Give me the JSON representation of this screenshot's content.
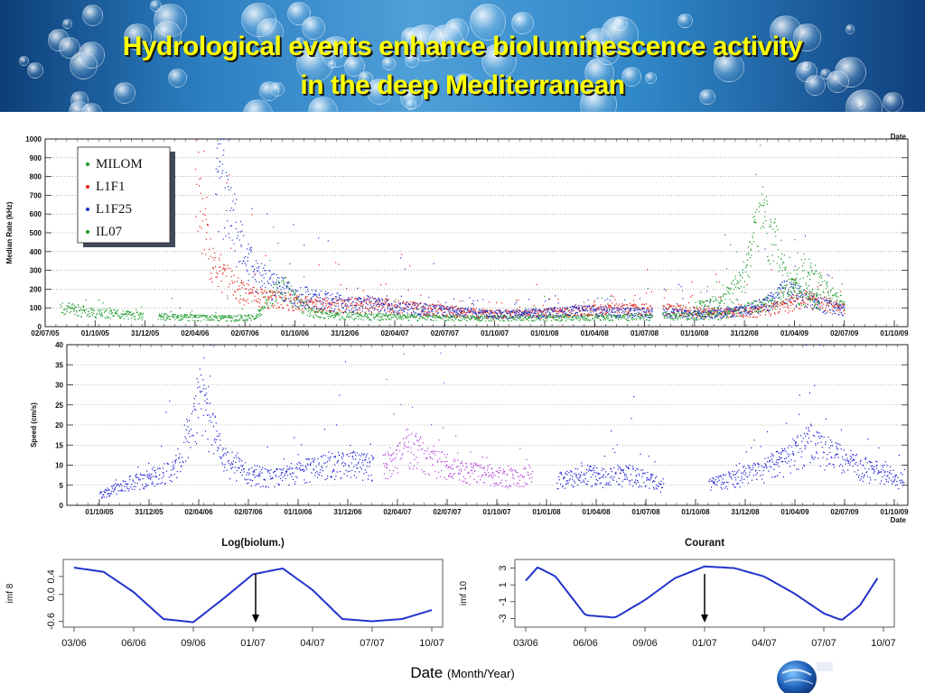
{
  "title_lines": [
    "Hydrological events enhance bioluminescence activity",
    "in the deep Mediterranean"
  ],
  "x_caption": {
    "main": "Date",
    "unit": "(Month/Year)"
  },
  "chart_data": [
    {
      "type": "scatter",
      "ylabel": "Median Rate (kHz)",
      "ylim": [
        0,
        1000
      ],
      "yticks": [
        0,
        100,
        200,
        300,
        400,
        500,
        600,
        700,
        800,
        900,
        1000
      ],
      "xticks": [
        "02/07/05",
        "01/10/05",
        "31/12/05",
        "02/04/06",
        "02/07/06",
        "01/10/06",
        "31/12/06",
        "02/04/07",
        "02/07/07",
        "01/10/07",
        "01/01/08",
        "01/04/08",
        "01/07/08",
        "01/10/08",
        "31/12/08",
        "01/04/09",
        "02/07/09",
        "01/10/09"
      ],
      "x_axis_label": "Date",
      "grid": true,
      "legend_position": "top-left",
      "series": [
        {
          "name": "MILOM",
          "color": "#1a9a2a",
          "x": [
            0.3,
            1.0,
            1.6,
            2.6,
            3.6,
            4.2,
            4.7,
            5.3,
            5.9,
            7.0,
            9.0,
            11.0,
            13.5,
            14.0,
            14.4,
            14.8,
            15.2,
            15.6,
            16.0
          ],
          "y": [
            120,
            90,
            75,
            60,
            55,
            60,
            260,
            90,
            70,
            60,
            55,
            60,
            70,
            110,
            140,
            200,
            350,
            220,
            130
          ]
        },
        {
          "name": "L1F1",
          "color": "#e2231a",
          "x": [
            3.0,
            3.1,
            3.3,
            3.6,
            3.9,
            4.3,
            4.8,
            5.4,
            6.0,
            6.6,
            7.2,
            7.8,
            8.4,
            9.0,
            9.6,
            10.2,
            10.8,
            11.3,
            12.4,
            12.8,
            13.2,
            13.6,
            14.0,
            14.4,
            14.8,
            15.2,
            15.6,
            16.0
          ],
          "y": [
            980,
            700,
            420,
            300,
            220,
            180,
            160,
            140,
            130,
            140,
            120,
            110,
            90,
            80,
            80,
            90,
            100,
            110,
            110,
            100,
            90,
            90,
            90,
            100,
            130,
            170,
            140,
            110
          ]
        },
        {
          "name": "L1F25",
          "color": "#2233cc",
          "x": [
            3.4,
            3.6,
            3.8,
            4.0,
            4.2,
            4.5,
            5.0,
            5.5,
            6.0,
            6.5,
            7.0,
            7.5,
            8.0,
            8.5,
            9.0,
            9.5,
            10.0,
            10.5,
            11.0,
            11.3,
            12.4,
            12.8,
            13.2,
            13.6,
            14.0,
            14.4,
            14.8,
            15.2,
            15.6,
            16.0
          ],
          "y": [
            960,
            800,
            600,
            420,
            330,
            260,
            200,
            170,
            140,
            150,
            120,
            110,
            100,
            90,
            80,
            80,
            90,
            100,
            100,
            90,
            90,
            80,
            80,
            90,
            100,
            140,
            220,
            180,
            130,
            100
          ]
        },
        {
          "name": "IL07",
          "color": "#1a9a2a",
          "x": [
            13.0,
            13.5,
            14.0,
            14.3,
            14.6,
            14.9,
            15.2,
            15.5
          ],
          "y": [
            120,
            150,
            300,
            700,
            500,
            260,
            180,
            150
          ]
        }
      ]
    },
    {
      "type": "scatter",
      "ylabel": "Speed (cm/s)",
      "ylim": [
        0,
        40
      ],
      "yticks": [
        0,
        5,
        10,
        15,
        20,
        25,
        30,
        35,
        40
      ],
      "xticks": [
        "01/10/05",
        "31/12/05",
        "02/04/06",
        "02/07/06",
        "01/10/06",
        "31/12/06",
        "02/04/07",
        "02/07/07",
        "01/10/07",
        "01/01/08",
        "01/04/08",
        "01/07/08",
        "01/10/08",
        "31/12/08",
        "01/04/09",
        "02/07/09",
        "01/10/09"
      ],
      "x_axis_label": "Date",
      "grid": true,
      "series": [
        {
          "color": "#1a1ad6",
          "x": [
            0.0,
            0.5,
            1.0,
            1.5,
            2.0,
            2.5,
            3.0,
            3.5,
            4.0,
            4.5,
            5.0,
            5.5
          ],
          "y": [
            3,
            6,
            8,
            10,
            30,
            13,
            9,
            8,
            10,
            11,
            12,
            11
          ]
        },
        {
          "color": "#b23bd8",
          "x": [
            5.7,
            6.2,
            6.7,
            7.2,
            7.7,
            8.2,
            8.7
          ],
          "y": [
            11,
            17,
            13,
            10,
            9,
            8,
            9
          ]
        },
        {
          "color": "#1a1ad6",
          "x": [
            9.2,
            9.7,
            10.2,
            10.7,
            11.3,
            12.3,
            12.8,
            13.3,
            13.8,
            14.3,
            14.8,
            15.3,
            15.8,
            16.2
          ],
          "y": [
            7,
            9,
            8,
            9,
            6,
            6,
            8,
            10,
            13,
            18,
            14,
            11,
            9,
            7
          ]
        }
      ]
    },
    {
      "type": "line",
      "title": "Log(biolum.)",
      "ylabel": "imf 8",
      "yticks": [
        "0.4",
        "0.0",
        "-0.6"
      ],
      "ylim": [
        -0.65,
        0.7
      ],
      "xticks": [
        "03/06",
        "06/06",
        "09/06",
        "01/07",
        "04/07",
        "07/07",
        "10/07"
      ],
      "marker_at": "01/07",
      "series": [
        {
          "color": "#2233cc",
          "x": [
            0.0,
            0.5,
            1.0,
            1.5,
            2.0,
            2.5,
            3.0,
            3.5,
            4.0,
            4.5,
            5.0,
            5.5,
            6.0
          ],
          "y": [
            0.6,
            0.5,
            0.05,
            -0.55,
            -0.62,
            -0.1,
            0.45,
            0.58,
            0.1,
            -0.55,
            -0.6,
            -0.55,
            -0.35
          ]
        }
      ]
    },
    {
      "type": "line",
      "title": "Courant",
      "ylabel": "imf 10",
      "yticks": [
        "3",
        "1",
        "-1",
        "-3"
      ],
      "ylim": [
        -3.6,
        3.6
      ],
      "xticks": [
        "03/06",
        "06/06",
        "09/06",
        "01/07",
        "04/07",
        "07/07",
        "10/07"
      ],
      "marker_at": "01/07",
      "series": [
        {
          "color": "#2233cc",
          "x": [
            0.0,
            0.2,
            0.5,
            1.0,
            1.5,
            2.0,
            2.5,
            3.0,
            3.5,
            4.0,
            4.5,
            5.0,
            5.3,
            5.6,
            5.9
          ],
          "y": [
            1.5,
            3.1,
            2.0,
            -2.6,
            -2.9,
            -0.8,
            1.8,
            3.2,
            3.0,
            2.0,
            0.0,
            -2.4,
            -3.2,
            -1.5,
            1.8
          ]
        }
      ]
    }
  ],
  "colors": {
    "title": "#ffff00",
    "banner": "#2c7fc2"
  },
  "icon": "globe-logo-icon"
}
